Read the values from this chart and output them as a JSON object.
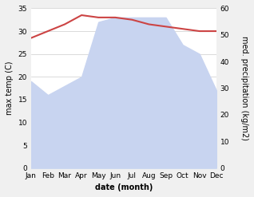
{
  "months": [
    "Jan",
    "Feb",
    "Mar",
    "Apr",
    "May",
    "Jun",
    "Jul",
    "Aug",
    "Sep",
    "Oct",
    "Nov",
    "Dec"
  ],
  "temperature": [
    28.5,
    30.0,
    31.5,
    33.5,
    33.0,
    33.0,
    32.5,
    31.5,
    31.0,
    30.5,
    30.0,
    30.0
  ],
  "precipitation_left": [
    19,
    16,
    18,
    20,
    32,
    33,
    33,
    33,
    33,
    27,
    25,
    17
  ],
  "temp_color": "#cc4444",
  "precip_fill_color": "#c8d4f0",
  "temp_ylim": [
    0,
    35
  ],
  "precip_ylim": [
    0,
    60
  ],
  "temp_yticks": [
    0,
    5,
    10,
    15,
    20,
    25,
    30,
    35
  ],
  "precip_yticks": [
    0,
    10,
    20,
    30,
    40,
    50,
    60
  ],
  "xlabel": "date (month)",
  "ylabel_left": "max temp (C)",
  "ylabel_right": "med. precipitation (kg/m2)",
  "background_color": "#f0f0f0",
  "plot_bg_color": "#ffffff",
  "grid_color": "#cccccc",
  "temp_linewidth": 1.5,
  "xlabel_fontsize": 7,
  "ylabel_fontsize": 7,
  "tick_fontsize": 6.5
}
